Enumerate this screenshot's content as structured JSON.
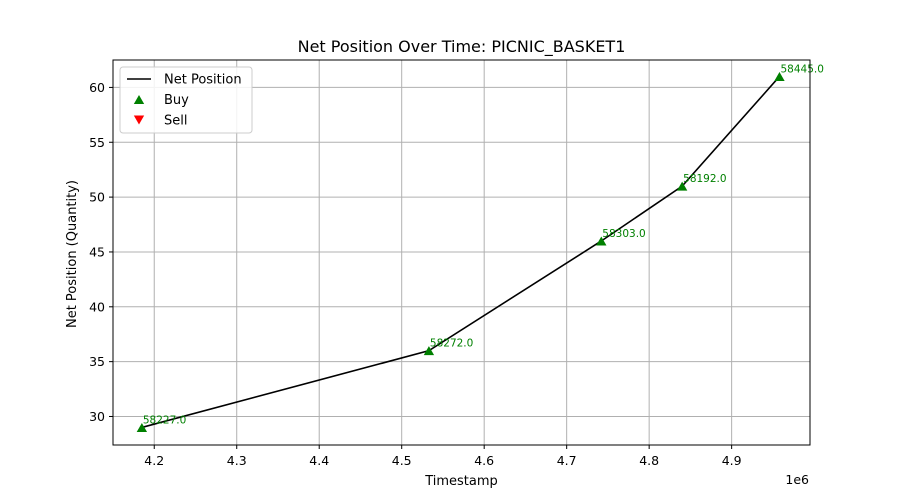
{
  "chart_data": {
    "type": "line",
    "title": "Net Position Over Time: PICNIC_BASKET1",
    "xlabel": "Timestamp",
    "ylabel": "Net Position (Quantity)",
    "x_offset_label": "1e6",
    "xlim": [
      4.15,
      4.995
    ],
    "ylim": [
      27.4,
      62.5
    ],
    "x_ticks": [
      4.2,
      4.3,
      4.4,
      4.5,
      4.6,
      4.7,
      4.8,
      4.9
    ],
    "x_tick_labels": [
      "4.2",
      "4.3",
      "4.4",
      "4.5",
      "4.6",
      "4.7",
      "4.8",
      "4.9"
    ],
    "y_ticks": [
      30,
      35,
      40,
      45,
      50,
      55,
      60
    ],
    "y_tick_labels": [
      "30",
      "35",
      "40",
      "45",
      "50",
      "55",
      "60"
    ],
    "grid": true,
    "legend": {
      "placement": "top-left",
      "entries": [
        {
          "label": "Net Position",
          "marker": "line",
          "color": "#000000"
        },
        {
          "label": "Buy",
          "marker": "triangle-up",
          "color": "#008000"
        },
        {
          "label": "Sell",
          "marker": "triangle-down",
          "color": "#ff0000"
        }
      ]
    },
    "series": [
      {
        "name": "Net Position",
        "color": "#000000",
        "x": [
          4.185,
          4.533,
          4.742,
          4.84,
          4.958
        ],
        "y": [
          29,
          36,
          46,
          51,
          61
        ]
      },
      {
        "name": "Buy",
        "color": "#008000",
        "marker": "triangle-up",
        "x": [
          4.185,
          4.533,
          4.742,
          4.84,
          4.958
        ],
        "y": [
          29,
          36,
          46,
          51,
          61
        ],
        "labels": [
          "58227.0",
          "58272.0",
          "58303.0",
          "58192.0",
          "58445.0"
        ]
      },
      {
        "name": "Sell",
        "color": "#ff0000",
        "marker": "triangle-down",
        "x": [],
        "y": []
      }
    ]
  }
}
